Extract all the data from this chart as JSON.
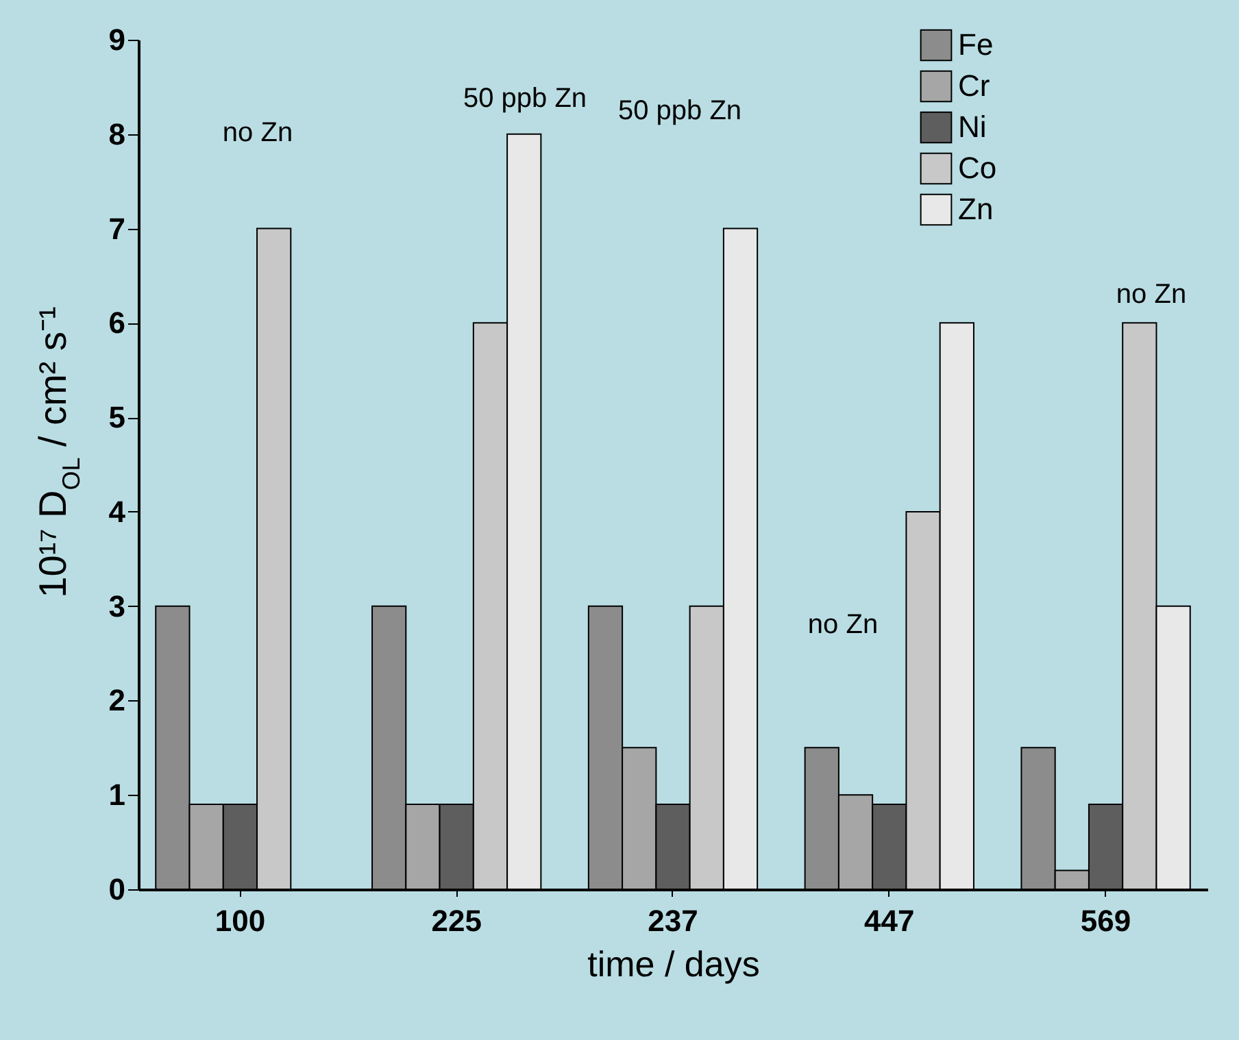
{
  "chart_data": {
    "type": "bar",
    "xlabel": "time / days",
    "ylabel": "10¹⁷ D$_{OL}$ / cm² s⁻¹",
    "categories": [
      "100",
      "225",
      "237",
      "447",
      "569"
    ],
    "series": [
      {
        "name": "Fe",
        "color": "#8c8c8c",
        "values": [
          3,
          3,
          3,
          1.5,
          1.5
        ]
      },
      {
        "name": "Cr",
        "color": "#a6a6a6",
        "values": [
          0.9,
          0.9,
          1.5,
          1.0,
          0.2
        ]
      },
      {
        "name": "Ni",
        "color": "#5e5e5e",
        "values": [
          0.9,
          0.9,
          0.9,
          0.9,
          0.9
        ]
      },
      {
        "name": "Co",
        "color": "#c8c8c8",
        "values": [
          7,
          6,
          3,
          4,
          6
        ]
      },
      {
        "name": "Zn",
        "color": "#e8e8e8",
        "values": [
          null,
          8,
          7,
          6,
          3
        ]
      }
    ],
    "ylim": [
      0,
      9
    ],
    "yticks": [
      0,
      1,
      2,
      3,
      4,
      5,
      6,
      7,
      8,
      9
    ],
    "annotations": [
      "no Zn",
      "50 ppb Zn",
      "50 ppb Zn",
      "no Zn",
      "no Zn"
    ],
    "legend": "top",
    "grid": false
  }
}
